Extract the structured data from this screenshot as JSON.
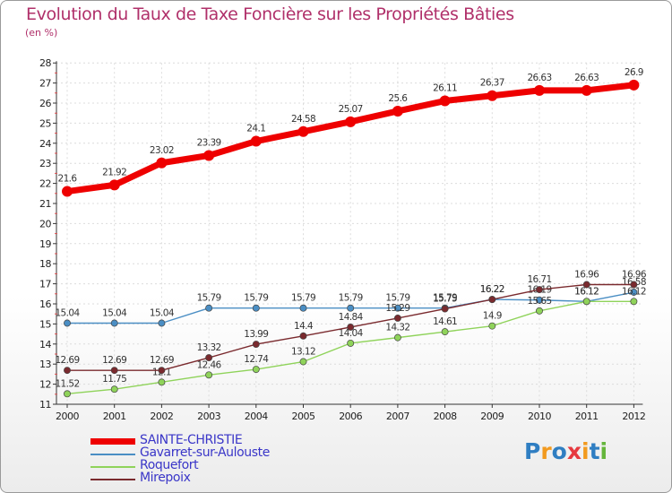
{
  "header": {
    "title": "Evolution du Taux de Taxe Foncière sur les Propriétés Bâties",
    "unit": "(en %)"
  },
  "logo": {
    "text": "Proxiti",
    "colors": [
      "#2f7ec2",
      "#f29a1f",
      "#2f7ec2",
      "#e6393f",
      "#f29a1f",
      "#2f7ec2",
      "#65b53b"
    ]
  },
  "chart_data": {
    "type": "line",
    "title": "Evolution du Taux de Taxe Foncière sur les Propriétés Bâties",
    "ylabel": "(en %)",
    "xlabel": "",
    "x": [
      "2000",
      "2001",
      "2002",
      "2003",
      "2004",
      "2005",
      "2006",
      "2007",
      "2008",
      "2009",
      "2010",
      "2011",
      "2012"
    ],
    "ylim": [
      11,
      28
    ],
    "yticks": [
      11,
      12,
      13,
      14,
      15,
      16,
      17,
      18,
      19,
      20,
      21,
      22,
      23,
      24,
      25,
      26,
      27,
      28
    ],
    "grid": true,
    "legend_position": "bottom-left",
    "series": [
      {
        "name": "SAINTE-CHRISTIE",
        "color": "#ee0000",
        "values": [
          21.6,
          21.92,
          23.02,
          23.39,
          24.1,
          24.58,
          25.07,
          25.6,
          26.11,
          26.37,
          26.63,
          26.63,
          26.9
        ],
        "labels": [
          "21.6",
          "21.92",
          "23.02",
          "23.39",
          "24.1",
          "24.58",
          "25.07",
          "25.6",
          "26.11",
          "26.37",
          "26.63",
          "26.63",
          "26.9"
        ]
      },
      {
        "name": "Gavarret-sur-Aulouste",
        "color": "#4a8ec4",
        "values": [
          15.04,
          15.04,
          15.04,
          15.79,
          15.79,
          15.79,
          15.79,
          15.79,
          15.79,
          16.22,
          16.19,
          16.12,
          16.58
        ],
        "labels": [
          "15.04",
          "15.04",
          "15.04",
          "15.79",
          "15.79",
          "15.79",
          "15.79",
          "15.79",
          "15.79",
          "16.22",
          "16.19",
          "16.12",
          "16.58"
        ]
      },
      {
        "name": "Roquefort",
        "color": "#8fd35a",
        "values": [
          11.52,
          11.75,
          12.1,
          12.46,
          12.74,
          13.12,
          14.04,
          14.32,
          14.61,
          14.9,
          15.65,
          16.12,
          16.12
        ],
        "labels": [
          "11.52",
          "11.75",
          "12.1",
          "12.46",
          "12.74",
          "13.12",
          "14.04",
          "14.32",
          "14.61",
          "14.9",
          "15.65",
          "16.12",
          "16.12"
        ]
      },
      {
        "name": "Mirepoix",
        "color": "#7a2a2e",
        "values": [
          12.69,
          12.69,
          12.69,
          13.32,
          13.99,
          14.4,
          14.84,
          15.29,
          15.75,
          16.22,
          16.71,
          16.96,
          16.96
        ],
        "labels": [
          "12.69",
          "12.69",
          "12.69",
          "13.32",
          "13.99",
          "14.4",
          "14.84",
          "15.29",
          "15.75",
          "16.22",
          "16.71",
          "16.96",
          "16.96"
        ]
      }
    ]
  }
}
